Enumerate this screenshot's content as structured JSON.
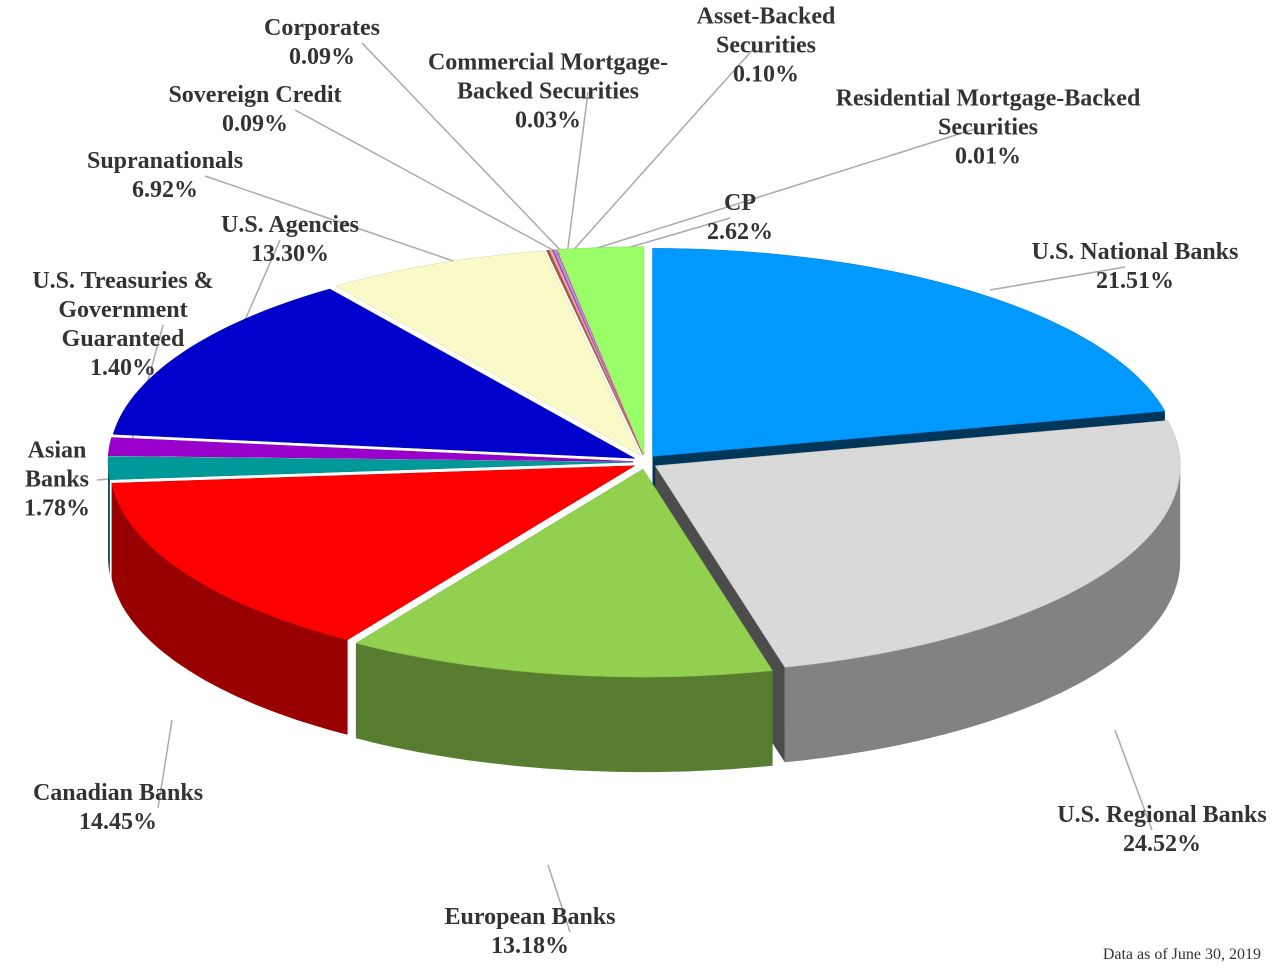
{
  "chart_data": {
    "type": "pie3d",
    "categories": [
      "U.S. National Banks",
      "U.S. Regional Banks",
      "European Banks",
      "Canadian Banks",
      "Asian Banks",
      "U.S. Treasuries & Government Guaranteed",
      "U.S. Agencies",
      "Supranationals",
      "Sovereign Credit",
      "Corporates",
      "Commercial Mortgage-Backed Securities",
      "Asset-Backed Securities",
      "Residential Mortgage-Backed Securities",
      "CP"
    ],
    "values": [
      21.51,
      24.52,
      13.18,
      14.45,
      1.78,
      1.4,
      13.3,
      6.92,
      0.09,
      0.09,
      0.03,
      0.1,
      0.01,
      2.62
    ],
    "value_labels": [
      "21.51%",
      "24.52%",
      "13.18%",
      "14.45%",
      "1.78%",
      "1.40%",
      "13.30%",
      "6.92%",
      "0.09%",
      "0.09%",
      "0.03%",
      "0.10%",
      "0.01%",
      "2.62%"
    ],
    "colors": [
      "#0099ff",
      "#d9d9d9",
      "#92d050",
      "#ff0000",
      "#009999",
      "#9900cc",
      "#0000cc",
      "#fafac8",
      "#996633",
      "#ff99cc",
      "#cc3333",
      "#9999ff",
      "#ff6600",
      "#99ff66"
    ],
    "note": "Data as of June 30, 2019"
  }
}
